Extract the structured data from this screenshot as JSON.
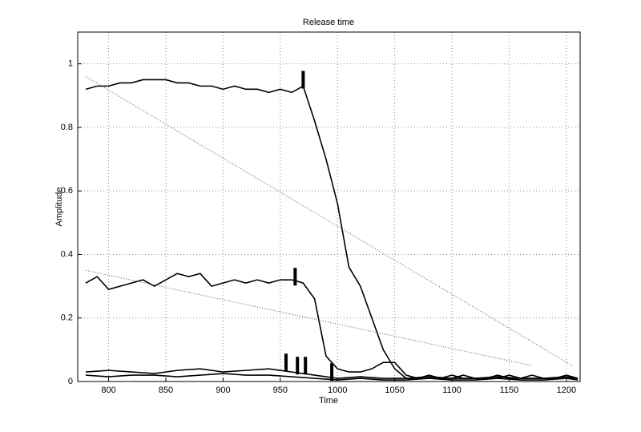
{
  "chart_data": {
    "type": "line",
    "title": "Release time",
    "x_label": "Time",
    "y_label": "Amplitude",
    "xlim": [
      773,
      1212
    ],
    "ylim": [
      0,
      1.1
    ],
    "xticks": [
      800,
      850,
      900,
      950,
      1000,
      1050,
      1100,
      1150,
      1200
    ],
    "yticks": [
      0,
      0.2,
      0.4,
      0.6,
      0.8,
      1
    ],
    "grid": true,
    "series": [
      {
        "color": "#000000",
        "style": "solid",
        "x": [
          780,
          790,
          800,
          810,
          820,
          830,
          840,
          850,
          860,
          870,
          880,
          890,
          900,
          910,
          920,
          930,
          940,
          950,
          960,
          970,
          980,
          990,
          1000,
          1010,
          1020,
          1030,
          1040,
          1050,
          1060,
          1070,
          1080,
          1090,
          1100,
          1110,
          1120,
          1130,
          1140,
          1150,
          1160,
          1170,
          1180,
          1190,
          1200,
          1210
        ],
        "values": [
          0.92,
          0.93,
          0.93,
          0.94,
          0.94,
          0.95,
          0.95,
          0.95,
          0.94,
          0.94,
          0.93,
          0.93,
          0.92,
          0.93,
          0.92,
          0.92,
          0.91,
          0.92,
          0.91,
          0.93,
          0.82,
          0.7,
          0.56,
          0.36,
          0.3,
          0.2,
          0.1,
          0.04,
          0.01,
          0.01,
          0.02,
          0.01,
          0.01,
          0.02,
          0.01,
          0.01,
          0.02,
          0.01,
          0.01,
          0.02,
          0.01,
          0.01,
          0.02,
          0.01
        ]
      },
      {
        "color": "#000000",
        "style": "solid",
        "x": [
          780,
          790,
          800,
          810,
          820,
          830,
          840,
          850,
          860,
          870,
          880,
          890,
          900,
          910,
          920,
          930,
          940,
          950,
          960,
          970,
          980,
          990,
          1000,
          1010,
          1020,
          1030,
          1040,
          1050,
          1060,
          1070,
          1080,
          1090,
          1100,
          1110,
          1120,
          1130,
          1140,
          1150,
          1160,
          1170,
          1180,
          1190,
          1200,
          1210
        ],
        "values": [
          0.31,
          0.33,
          0.29,
          0.3,
          0.31,
          0.32,
          0.3,
          0.32,
          0.34,
          0.33,
          0.34,
          0.3,
          0.31,
          0.32,
          0.31,
          0.32,
          0.31,
          0.32,
          0.32,
          0.31,
          0.26,
          0.08,
          0.04,
          0.03,
          0.03,
          0.04,
          0.06,
          0.06,
          0.02,
          0.01,
          0.01,
          0.01,
          0.02,
          0.01,
          0.01,
          0.01,
          0.01,
          0.02,
          0.01,
          0.01,
          0.01,
          0.01,
          0.01,
          0.01
        ]
      },
      {
        "color": "#000000",
        "style": "solid",
        "x": [
          780,
          800,
          820,
          840,
          860,
          880,
          900,
          920,
          940,
          960,
          980,
          1000,
          1020,
          1040,
          1060,
          1080,
          1100,
          1120,
          1140,
          1160,
          1180,
          1200,
          1210
        ],
        "values": [
          0.03,
          0.035,
          0.03,
          0.025,
          0.035,
          0.04,
          0.03,
          0.035,
          0.04,
          0.03,
          0.02,
          0.01,
          0.015,
          0.01,
          0.01,
          0.015,
          0.01,
          0.01,
          0.015,
          0.01,
          0.01,
          0.015,
          0.01
        ]
      },
      {
        "color": "#000000",
        "style": "solid",
        "x": [
          780,
          800,
          820,
          840,
          860,
          880,
          900,
          920,
          940,
          960,
          980,
          1000,
          1020,
          1040,
          1060,
          1080,
          1100,
          1120,
          1140,
          1160,
          1180,
          1200,
          1210
        ],
        "values": [
          0.02,
          0.015,
          0.02,
          0.02,
          0.015,
          0.02,
          0.025,
          0.02,
          0.02,
          0.015,
          0.01,
          0.005,
          0.01,
          0.005,
          0.005,
          0.01,
          0.005,
          0.005,
          0.01,
          0.005,
          0.005,
          0.01,
          0.005
        ]
      },
      {
        "color": "#555555",
        "style": "dotted",
        "x": [
          780,
          1205
        ],
        "values": [
          0.96,
          0.05
        ]
      },
      {
        "color": "#555555",
        "style": "dotted",
        "x": [
          780,
          1170
        ],
        "values": [
          0.35,
          0.05
        ]
      }
    ],
    "markers": {
      "x": [
        970,
        963,
        955,
        965,
        972,
        995
      ],
      "values": [
        0.95,
        0.33,
        0.06,
        0.05,
        0.05,
        0.03
      ]
    }
  }
}
